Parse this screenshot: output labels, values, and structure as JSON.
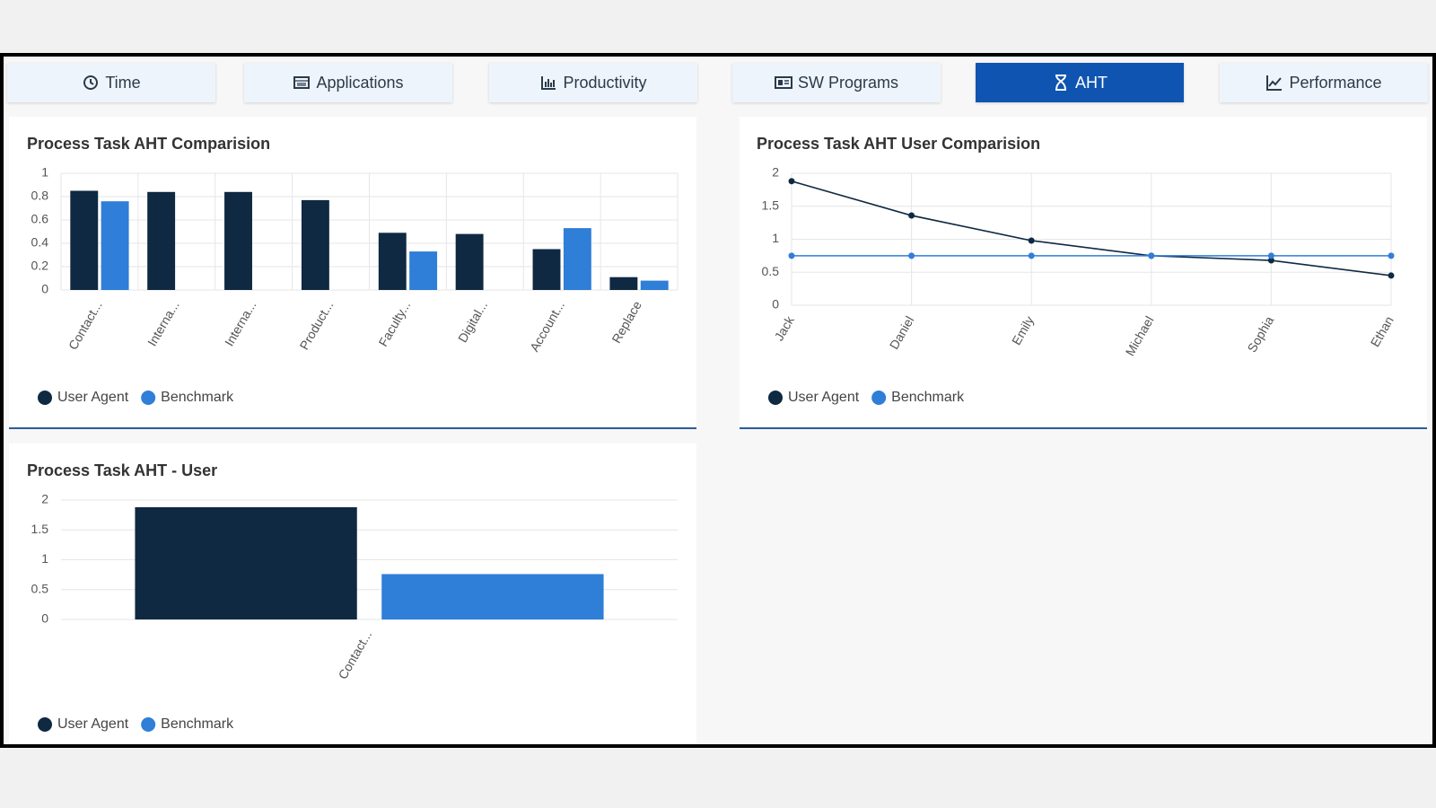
{
  "tabs": [
    "Time",
    "Applications",
    "Productivity",
    "SW Programs",
    "AHT",
    "Performance"
  ],
  "chart_data": [
    {
      "type": "bar",
      "title": "Process Task AHT Comparision",
      "categories": [
        "Contact...",
        "Interna...",
        "Interna...",
        "Product...",
        "Faculty...",
        "Digital...",
        "Account...",
        "Replace"
      ],
      "series": [
        {
          "name": "User Agent",
          "color": "#0f2942",
          "values": [
            0.85,
            0.84,
            0.84,
            0.77,
            0.49,
            0.48,
            0.35,
            0.11
          ]
        },
        {
          "name": "Benchmark",
          "color": "#2f7ed8",
          "values": [
            0.76,
            null,
            null,
            null,
            0.33,
            null,
            0.53,
            0.08
          ]
        }
      ],
      "ylim": [
        0,
        1
      ],
      "yticks": [
        0,
        0.2,
        0.4,
        0.6,
        0.8,
        1
      ],
      "grid": true
    },
    {
      "type": "line",
      "title": "Process Task AHT User Comparision",
      "categories": [
        "Jack",
        "Daniel",
        "Emily",
        "Michael",
        "Sophia",
        "Ethan"
      ],
      "series": [
        {
          "name": "User Agent",
          "color": "#0f2942",
          "values": [
            1.88,
            1.36,
            0.98,
            0.75,
            0.68,
            0.45
          ]
        },
        {
          "name": "Benchmark",
          "color": "#2f7ed8",
          "values": [
            0.75,
            0.75,
            0.75,
            0.75,
            0.75,
            0.75
          ]
        }
      ],
      "ylim": [
        0,
        2
      ],
      "yticks": [
        0,
        0.5,
        1,
        1.5,
        2
      ],
      "grid": true
    },
    {
      "type": "bar",
      "title": "Process Task AHT - User",
      "categories": [
        "Contact..."
      ],
      "series": [
        {
          "name": "User Agent",
          "color": "#0f2942",
          "values": [
            1.88
          ]
        },
        {
          "name": "Benchmark",
          "color": "#2f7ed8",
          "values": [
            0.76
          ]
        }
      ],
      "ylim": [
        0,
        2
      ],
      "yticks": [
        0,
        0.5,
        1,
        1.5,
        2
      ],
      "grid": true
    }
  ]
}
